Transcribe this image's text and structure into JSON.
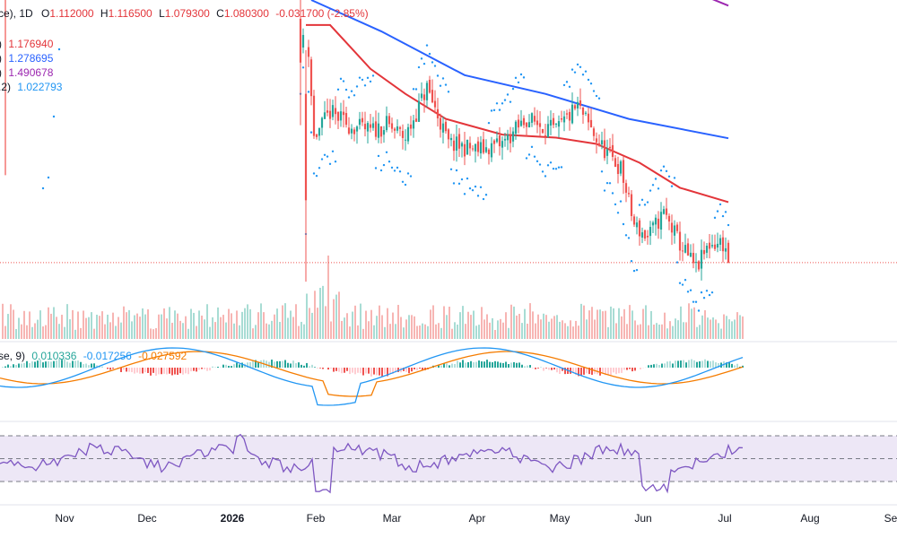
{
  "header": {
    "symbol_tail": "ce), 1D",
    "o_label": "O",
    "o": "1.112000",
    "h_label": "H",
    "h": "1.116500",
    "l_label": "L",
    "l": "1.079300",
    "c_label": "C",
    "c": "1.080300",
    "change": "-0.031700 (-2.85%)",
    "ma_rows": [
      {
        "tail": ")",
        "value": "1.176940",
        "color": "#e3353a"
      },
      {
        "tail": ")",
        "value": "1.278695",
        "color": "#2962ff"
      },
      {
        "tail": ")",
        "value": "1.490678",
        "color": "#9c27b0"
      },
      {
        "tail": ".2)",
        "value": "1.022793",
        "color": "#2196f3"
      }
    ]
  },
  "macd_legend": {
    "tail": "se, 9)",
    "hist": "0.010336",
    "macd": "-0.017256",
    "signal": "-0.027592",
    "hist_color": "#26a69a",
    "macd_color": "#2196f3",
    "signal_color": "#f57c00"
  },
  "colors": {
    "up": "#26a69a",
    "down": "#ef5350",
    "ma_short": "#e3353a",
    "ma_mid": "#2962ff",
    "ma_long": "#9c27b0",
    "sar": "#2196f3",
    "rsi": "#7e57c2",
    "rsi_band": "#ede7f6"
  },
  "chart_data": {
    "type": "candlestick",
    "interval": "1D",
    "last_price": 1.0803,
    "ohlc_anchors": [
      {
        "date": "2026-01-30",
        "price": 1.44
      },
      {
        "date": "2026-02-02",
        "price": 1.42
      },
      {
        "date": "2026-02-04",
        "price": 1.28
      },
      {
        "date": "2026-02-10",
        "price": 1.32
      },
      {
        "date": "2026-02-17",
        "price": 1.3
      },
      {
        "date": "2026-02-25",
        "price": 1.29
      },
      {
        "date": "2026-03-03",
        "price": 1.3
      },
      {
        "date": "2026-03-10",
        "price": 1.28
      },
      {
        "date": "2026-03-18",
        "price": 1.36
      },
      {
        "date": "2026-03-26",
        "price": 1.27
      },
      {
        "date": "2026-04-06",
        "price": 1.26
      },
      {
        "date": "2026-04-15",
        "price": 1.27
      },
      {
        "date": "2026-04-24",
        "price": 1.31
      },
      {
        "date": "2026-05-05",
        "price": 1.29
      },
      {
        "date": "2026-05-13",
        "price": 1.33
      },
      {
        "date": "2026-05-21",
        "price": 1.27
      },
      {
        "date": "2026-05-29",
        "price": 1.23
      },
      {
        "date": "2026-06-03",
        "price": 1.14
      },
      {
        "date": "2026-06-08",
        "price": 1.12
      },
      {
        "date": "2026-06-14",
        "price": 1.16
      },
      {
        "date": "2026-06-20",
        "price": 1.11
      },
      {
        "date": "2026-06-26",
        "price": 1.07
      },
      {
        "date": "2026-07-01",
        "price": 1.11
      },
      {
        "date": "2026-07-06",
        "price": 1.112
      },
      {
        "date": "2026-07-08",
        "price": 1.0803
      }
    ],
    "ma_lines": [
      {
        "name": "MA 1.176940",
        "color": "#e3353a",
        "points": [
          [
            "2026-02-01",
            1.46
          ],
          [
            "2026-02-10",
            1.46
          ],
          [
            "2026-02-25",
            1.39
          ],
          [
            "2026-03-10",
            1.35
          ],
          [
            "2026-03-25",
            1.31
          ],
          [
            "2026-04-15",
            1.285
          ],
          [
            "2026-05-05",
            1.28
          ],
          [
            "2026-05-20",
            1.27
          ],
          [
            "2026-06-05",
            1.24
          ],
          [
            "2026-06-20",
            1.2
          ],
          [
            "2026-07-08",
            1.177
          ]
        ]
      },
      {
        "name": "MA 1.278695",
        "color": "#2962ff",
        "points": [
          [
            "2026-02-03",
            1.5
          ],
          [
            "2026-03-01",
            1.45
          ],
          [
            "2026-04-01",
            1.38
          ],
          [
            "2026-05-01",
            1.35
          ],
          [
            "2026-06-01",
            1.31
          ],
          [
            "2026-07-08",
            1.279
          ]
        ]
      },
      {
        "name": "MA 1.490678",
        "color": "#9c27b0",
        "points": [
          [
            "2026-05-14",
            1.58
          ],
          [
            "2026-06-10",
            1.54
          ],
          [
            "2026-07-08",
            1.491
          ]
        ]
      }
    ],
    "axes": {
      "x_ticks": [
        "Nov",
        "Dec",
        "2026",
        "Feb",
        "Mar",
        "Apr",
        "May",
        "Jun",
        "Jul",
        "Aug",
        "Se"
      ],
      "y_price_range": [
        1.02,
        1.5
      ]
    },
    "rsi_levels": [
      70,
      50,
      30
    ]
  }
}
